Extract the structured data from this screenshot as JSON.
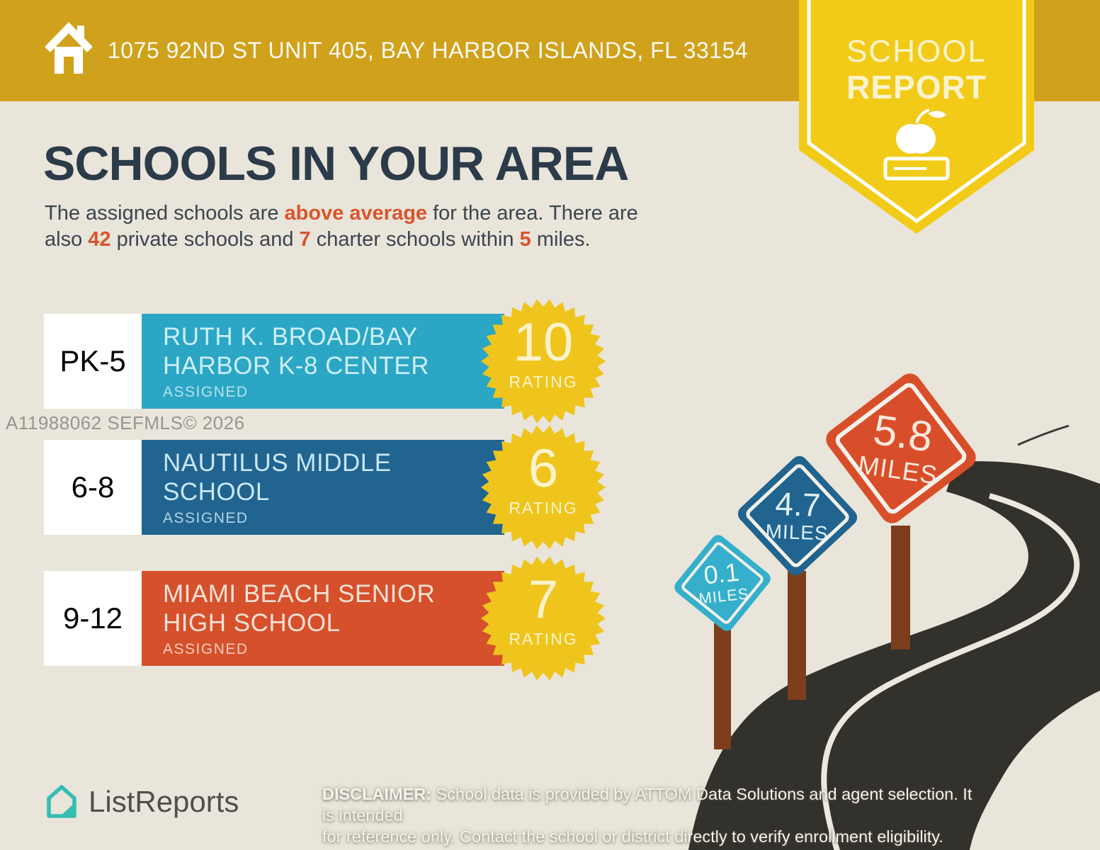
{
  "header": {
    "address": "1075 92ND ST UNIT 405, BAY HARBOR ISLANDS, FL 33154"
  },
  "ribbon": {
    "line1": "SCHOOL",
    "line2": "REPORT"
  },
  "main": {
    "title": "SCHOOLS IN YOUR AREA",
    "intro_line1": {
      "seg1": "The assigned schools are ",
      "hl": "above average",
      "seg2": " for the area. There are"
    },
    "intro_line2": {
      "seg1": "also ",
      "hl1": "42",
      "seg2": " private schools and ",
      "hl2": "7",
      "seg3": " charter schools within ",
      "hl3": "5",
      "seg4": " miles."
    }
  },
  "rating_label": "RATING",
  "schools": [
    {
      "grades": "PK-5",
      "name_line1": "RUTH K. BROAD/BAY",
      "name_line2": "HARBOR K-8 CENTER",
      "tag": "ASSIGNED",
      "rating": "10"
    },
    {
      "grades": "6-8",
      "name_line1": "NAUTILUS MIDDLE",
      "name_line2": "SCHOOL",
      "tag": "ASSIGNED",
      "rating": "6"
    },
    {
      "grades": "9-12",
      "name_line1": "MIAMI BEACH SENIOR",
      "name_line2": "HIGH SCHOOL",
      "tag": "ASSIGNED",
      "rating": "7"
    }
  ],
  "signs": [
    {
      "distance": "0.1",
      "unit": "MILES"
    },
    {
      "distance": "4.7",
      "unit": "MILES"
    },
    {
      "distance": "5.8",
      "unit": "MILES"
    }
  ],
  "watermark": "A11988062  SEFMLS© 2026",
  "footer": {
    "brand": "ListReports",
    "disclaimer_bold": "DISCLAIMER:",
    "disclaimer_line1": " School data is provided by ATTOM Data Solutions and agent selection. It is intended",
    "disclaimer_line2": "for reference only. Contact the school or district directly to verify enrollment eligibility."
  },
  "colors": {
    "background": "#e9e5da",
    "header_gold": "#d0a11b",
    "badge_yellow": "#f2cb18",
    "title_navy": "#2c3b4a",
    "body_text": "#3d444e",
    "accent_orange": "#d9542c",
    "school_cyan": "#2ba6c4",
    "school_blue": "#20648f",
    "school_red": "#d5502b",
    "sign_cyan": "#35afcb",
    "sign_red": "#d94e2a",
    "starburst_yellow": "#efc51d",
    "road_dark": "#33312c",
    "road_line": "#ece8dd",
    "post_brown": "#7c3e1c",
    "brand_teal": "#36beb3",
    "watermark_gray": "#8e8e88"
  }
}
